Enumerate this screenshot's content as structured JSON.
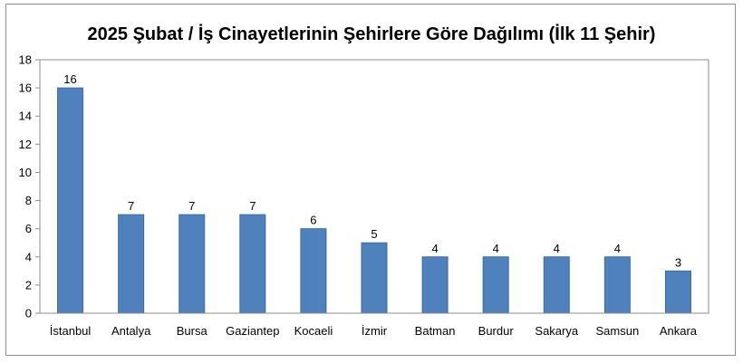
{
  "chart_data": {
    "type": "bar",
    "title": "2025 Şubat / İş Cinayetlerinin Şehirlere Göre Dağılımı (İlk 11 Şehir)",
    "xlabel": "",
    "ylabel": "",
    "categories": [
      "İstanbul",
      "Antalya",
      "Bursa",
      "Gaziantep",
      "Kocaeli",
      "İzmir",
      "Batman",
      "Burdur",
      "Sakarya",
      "Samsun",
      "Ankara"
    ],
    "values": [
      16,
      7,
      7,
      7,
      6,
      5,
      4,
      4,
      4,
      4,
      3
    ],
    "ylim": [
      0,
      18
    ],
    "yticks": [
      0,
      2,
      4,
      6,
      8,
      10,
      12,
      14,
      16,
      18
    ],
    "grid": false,
    "data_labels": true,
    "legend": "none",
    "colors": {
      "bar": "#4f81bd",
      "bar_stroke": "#3a6ca8",
      "plot_bg": "#ffffff",
      "axis": "#8e8e8e"
    }
  }
}
